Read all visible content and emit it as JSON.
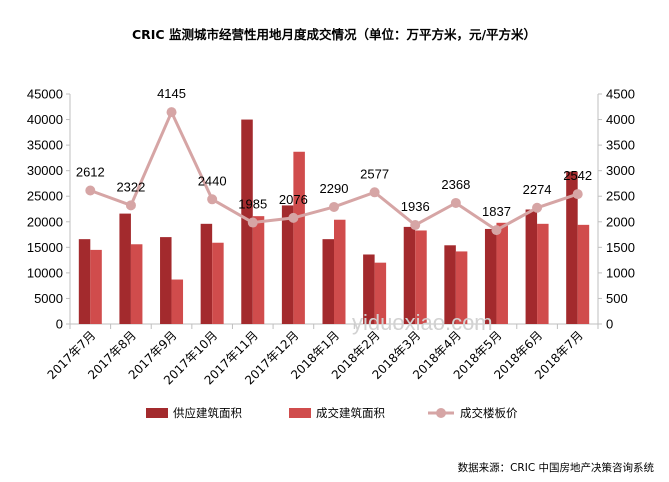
{
  "chart_data": {
    "type": "bar",
    "title": "CRIC 监测城市经营性用地月度成交情况（单位：万平方米，元/平方米）",
    "categories": [
      "2017年7月",
      "2017年8月",
      "2017年9月",
      "2017年10月",
      "2017年11月",
      "2017年12月",
      "2018年1月",
      "2018年2月",
      "2018年3月",
      "2018年4月",
      "2018年5月",
      "2018年6月",
      "2018年7月"
    ],
    "series": [
      {
        "name": "供应建筑面积",
        "type": "bar",
        "axis": "left",
        "color": "#a32a2d",
        "values": [
          16600,
          21600,
          17000,
          19600,
          40000,
          23200,
          16600,
          13600,
          19000,
          15400,
          18600,
          22400,
          29800
        ]
      },
      {
        "name": "成交建筑面积",
        "type": "bar",
        "axis": "left",
        "color": "#d04c4c",
        "values": [
          14500,
          15600,
          8700,
          15900,
          21100,
          33700,
          20400,
          12000,
          18300,
          14200,
          19800,
          19600,
          19400
        ]
      },
      {
        "name": "成交楼板价",
        "type": "line",
        "axis": "right",
        "color": "#d6a5a5",
        "values": [
          2612,
          2322,
          4145,
          2440,
          1985,
          2076,
          2290,
          2577,
          1936,
          2368,
          1837,
          2274,
          2542
        ]
      }
    ],
    "y_left": {
      "min": 0,
      "max": 45000,
      "step": 5000
    },
    "y_right": {
      "min": 0,
      "max": 4500,
      "step": 500
    },
    "grid": false,
    "legend_position": "bottom"
  },
  "watermark": "yiduoxiao.com",
  "source": "数据来源：CRIC 中国房地产决策咨询系统"
}
